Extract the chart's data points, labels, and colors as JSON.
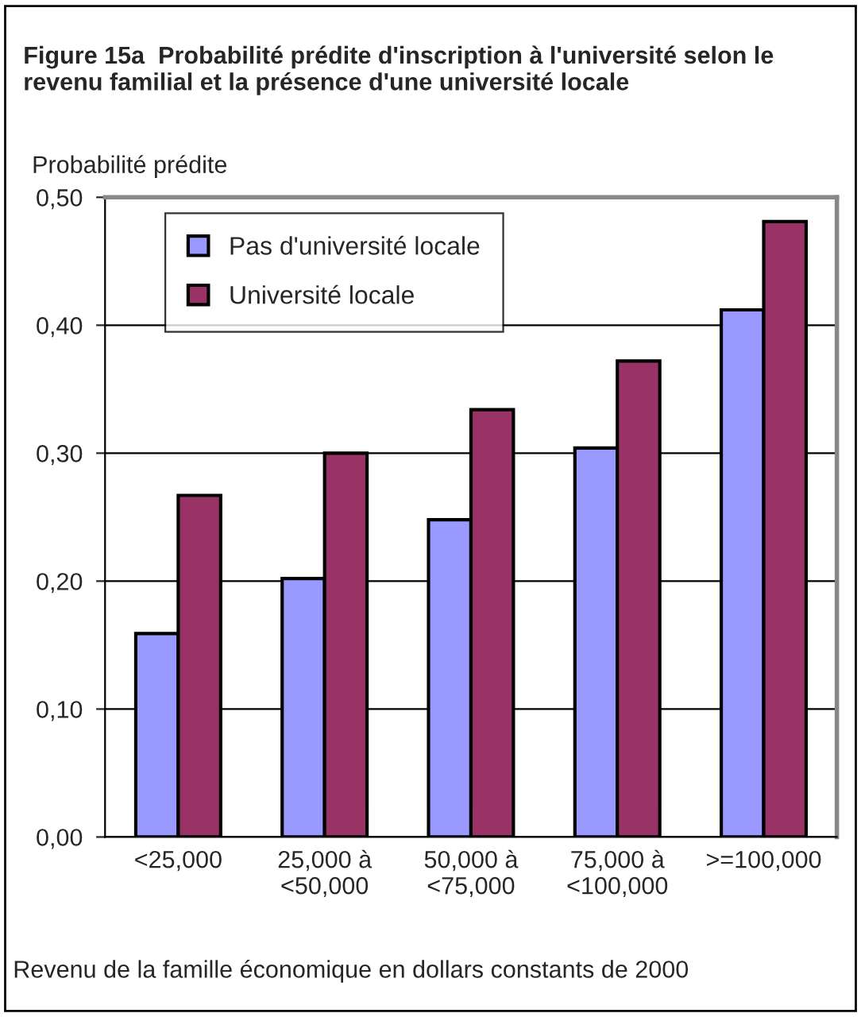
{
  "chart_data": {
    "type": "bar",
    "title": "Figure 15a  Probabilité prédite d'inscription à l'université selon le revenu familial et la présence d'une université locale",
    "ylabel": "Probabilité prédite",
    "xlabel": "Revenu de la famille économique en dollars constants de 2000",
    "categories": [
      "<25,000",
      "25,000 à\n<50,000",
      "50,000 à\n<75,000",
      "75,000 à\n<100,000",
      ">=100,000"
    ],
    "series": [
      {
        "name": "Pas d'université locale",
        "color": "#9999ff",
        "values": [
          0.159,
          0.202,
          0.248,
          0.304,
          0.412
        ]
      },
      {
        "name": "Université locale",
        "color": "#993366",
        "values": [
          0.267,
          0.3,
          0.334,
          0.372,
          0.481
        ]
      }
    ],
    "ylim": [
      0,
      0.5
    ],
    "yticks": [
      {
        "value": 0,
        "label": "0,00"
      },
      {
        "value": 0.1,
        "label": "0,10"
      },
      {
        "value": 0.2,
        "label": "0,20"
      },
      {
        "value": 0.3,
        "label": "0,30"
      },
      {
        "value": 0.4,
        "label": "0,40"
      },
      {
        "value": 0.5,
        "label": "0,50"
      }
    ],
    "grid": "y",
    "legend": "top left"
  }
}
